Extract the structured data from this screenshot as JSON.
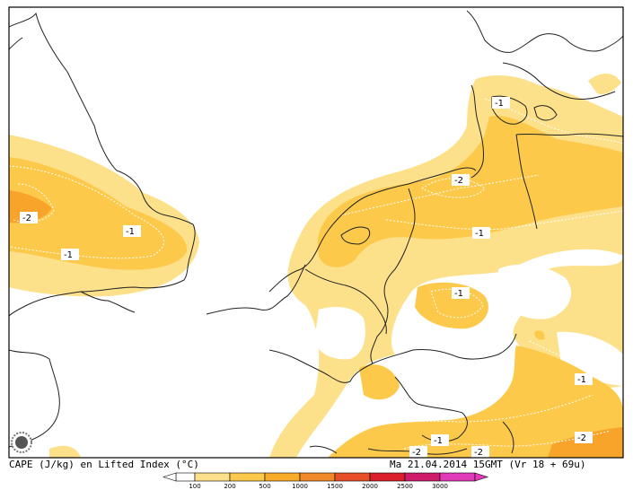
{
  "footer": {
    "left": "CAPE (J/kg) en Lifted Index (°C)",
    "right": "Ma 21.04.2014 15GMT (Vr 18 + 69u)"
  },
  "legend": {
    "ticks": [
      "100",
      "200",
      "500",
      "1000",
      "1500",
      "2000",
      "2500",
      "3000"
    ],
    "colors": [
      "#ffffff",
      "#ffe08a",
      "#fcc94a",
      "#f8ac2a",
      "#f08a28",
      "#e8502a",
      "#d9202a",
      "#ce1c6a",
      "#e23ab8"
    ]
  },
  "colors": {
    "cape_low": "#fde08a",
    "cape_mid": "#fcc94a",
    "cape_high": "#f8a42a",
    "coast": "#222222",
    "frame": "#000000"
  },
  "lifted_index_labels": [
    "-2",
    "-1",
    "-1",
    "-1",
    "-2",
    "-1",
    "-1",
    "-1",
    "-2",
    "-1",
    "-2",
    "-2"
  ],
  "icon": "sun-logo-icon"
}
